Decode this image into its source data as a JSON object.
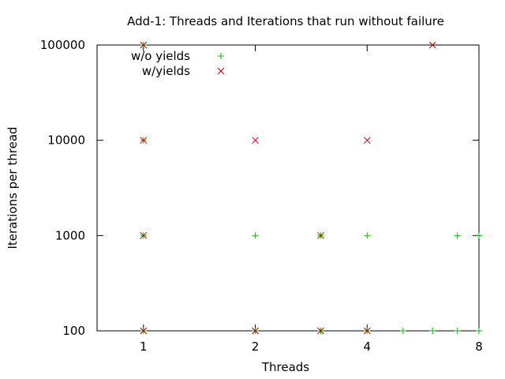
{
  "chart_data": {
    "type": "scatter",
    "title": "Add-1: Threads and Iterations that run without failure",
    "xlabel": "Threads",
    "ylabel": "Iterations per thread",
    "x_scale": "log2",
    "y_scale": "log10",
    "xlim": [
      0.75,
      8
    ],
    "ylim": [
      100,
      100000
    ],
    "x_ticks": [
      {
        "value": 1,
        "label": "1"
      },
      {
        "value": 2,
        "label": "2"
      },
      {
        "value": 4,
        "label": "4"
      },
      {
        "value": 8,
        "label": "8"
      }
    ],
    "y_ticks": [
      {
        "value": 100,
        "label": "100"
      },
      {
        "value": 1000,
        "label": "1000"
      },
      {
        "value": 10000,
        "label": "10000"
      },
      {
        "value": 100000,
        "label": "100000"
      }
    ],
    "legend_position": "top-left",
    "grid": false,
    "series": [
      {
        "name": "w/o yields",
        "marker": "plus",
        "color": "#00c000",
        "points": [
          {
            "x": 1,
            "y": 100
          },
          {
            "x": 1,
            "y": 1000
          },
          {
            "x": 1,
            "y": 10000
          },
          {
            "x": 1,
            "y": 100000
          },
          {
            "x": 2,
            "y": 100
          },
          {
            "x": 2,
            "y": 1000
          },
          {
            "x": 3,
            "y": 100
          },
          {
            "x": 3,
            "y": 1000
          },
          {
            "x": 4,
            "y": 100
          },
          {
            "x": 4,
            "y": 1000
          },
          {
            "x": 5,
            "y": 100
          },
          {
            "x": 6,
            "y": 100
          },
          {
            "x": 7,
            "y": 100
          },
          {
            "x": 7,
            "y": 1000
          },
          {
            "x": 8,
            "y": 100
          },
          {
            "x": 8,
            "y": 1000
          }
        ]
      },
      {
        "name": "w/yields",
        "marker": "cross",
        "color": "#c00000",
        "points": [
          {
            "x": 1,
            "y": 100
          },
          {
            "x": 1,
            "y": 1000
          },
          {
            "x": 1,
            "y": 10000
          },
          {
            "x": 1,
            "y": 100000
          },
          {
            "x": 2,
            "y": 100
          },
          {
            "x": 2,
            "y": 10000
          },
          {
            "x": 3,
            "y": 100
          },
          {
            "x": 3,
            "y": 1000
          },
          {
            "x": 4,
            "y": 100
          },
          {
            "x": 4,
            "y": 10000
          },
          {
            "x": 6,
            "y": 100000
          }
        ]
      }
    ]
  }
}
